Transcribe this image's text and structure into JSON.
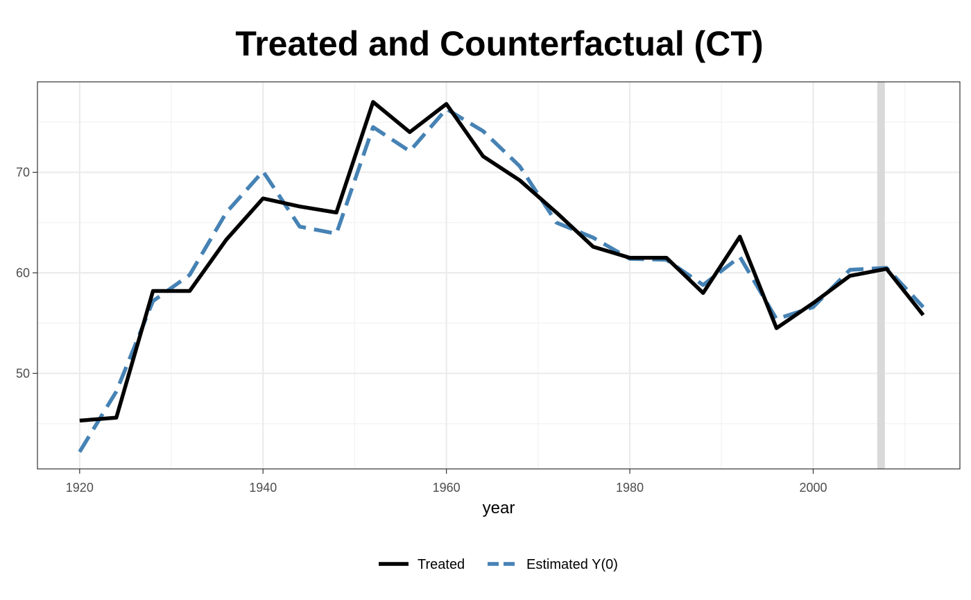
{
  "chart_data": {
    "type": "line",
    "title": "Treated and Counterfactual (CT)",
    "xlabel": "year",
    "ylabel": "",
    "xlim": [
      1915.4,
      2016
    ],
    "ylim": [
      40.5,
      79
    ],
    "x_ticks": [
      1920,
      1940,
      1960,
      1980,
      2000
    ],
    "x_tick_labels": [
      "1920",
      "1940",
      "1960",
      "1980",
      "2000"
    ],
    "x_minor_ticks": [
      1930,
      1950,
      1970,
      1990,
      2010
    ],
    "y_ticks": [
      50,
      60,
      70
    ],
    "y_tick_labels": [
      "50",
      "60",
      "70"
    ],
    "y_minor_ticks": [
      45,
      55,
      65,
      75
    ],
    "grid": true,
    "legend_position": "bottom",
    "treatment_year": 2007.4,
    "treatment_band_color": "#d9d9d9",
    "x": [
      1920,
      1924,
      1928,
      1932,
      1936,
      1940,
      1944,
      1948,
      1952,
      1956,
      1960,
      1964,
      1968,
      1972,
      1976,
      1980,
      1984,
      1988,
      1992,
      1996,
      2000,
      2004,
      2008,
      2012
    ],
    "series": [
      {
        "name": "Treated",
        "color": "#000000",
        "dash": "solid",
        "values": [
          45.3,
          45.6,
          58.2,
          58.2,
          63.3,
          67.4,
          66.6,
          66.0,
          77.0,
          74.0,
          76.8,
          71.6,
          69.2,
          66.0,
          62.6,
          61.5,
          61.5,
          58.0,
          63.6,
          54.5,
          57.0,
          59.7,
          60.4,
          55.8
        ]
      },
      {
        "name": "Estimated Y(0)",
        "color": "#4682b4",
        "dash": "dashed",
        "values": [
          42.2,
          48.2,
          57.2,
          59.8,
          66.0,
          70.1,
          64.6,
          63.9,
          74.5,
          72.1,
          76.3,
          74.1,
          70.6,
          65.0,
          63.5,
          61.4,
          61.3,
          58.8,
          61.6,
          55.4,
          56.6,
          60.3,
          60.5,
          56.6
        ]
      }
    ]
  }
}
